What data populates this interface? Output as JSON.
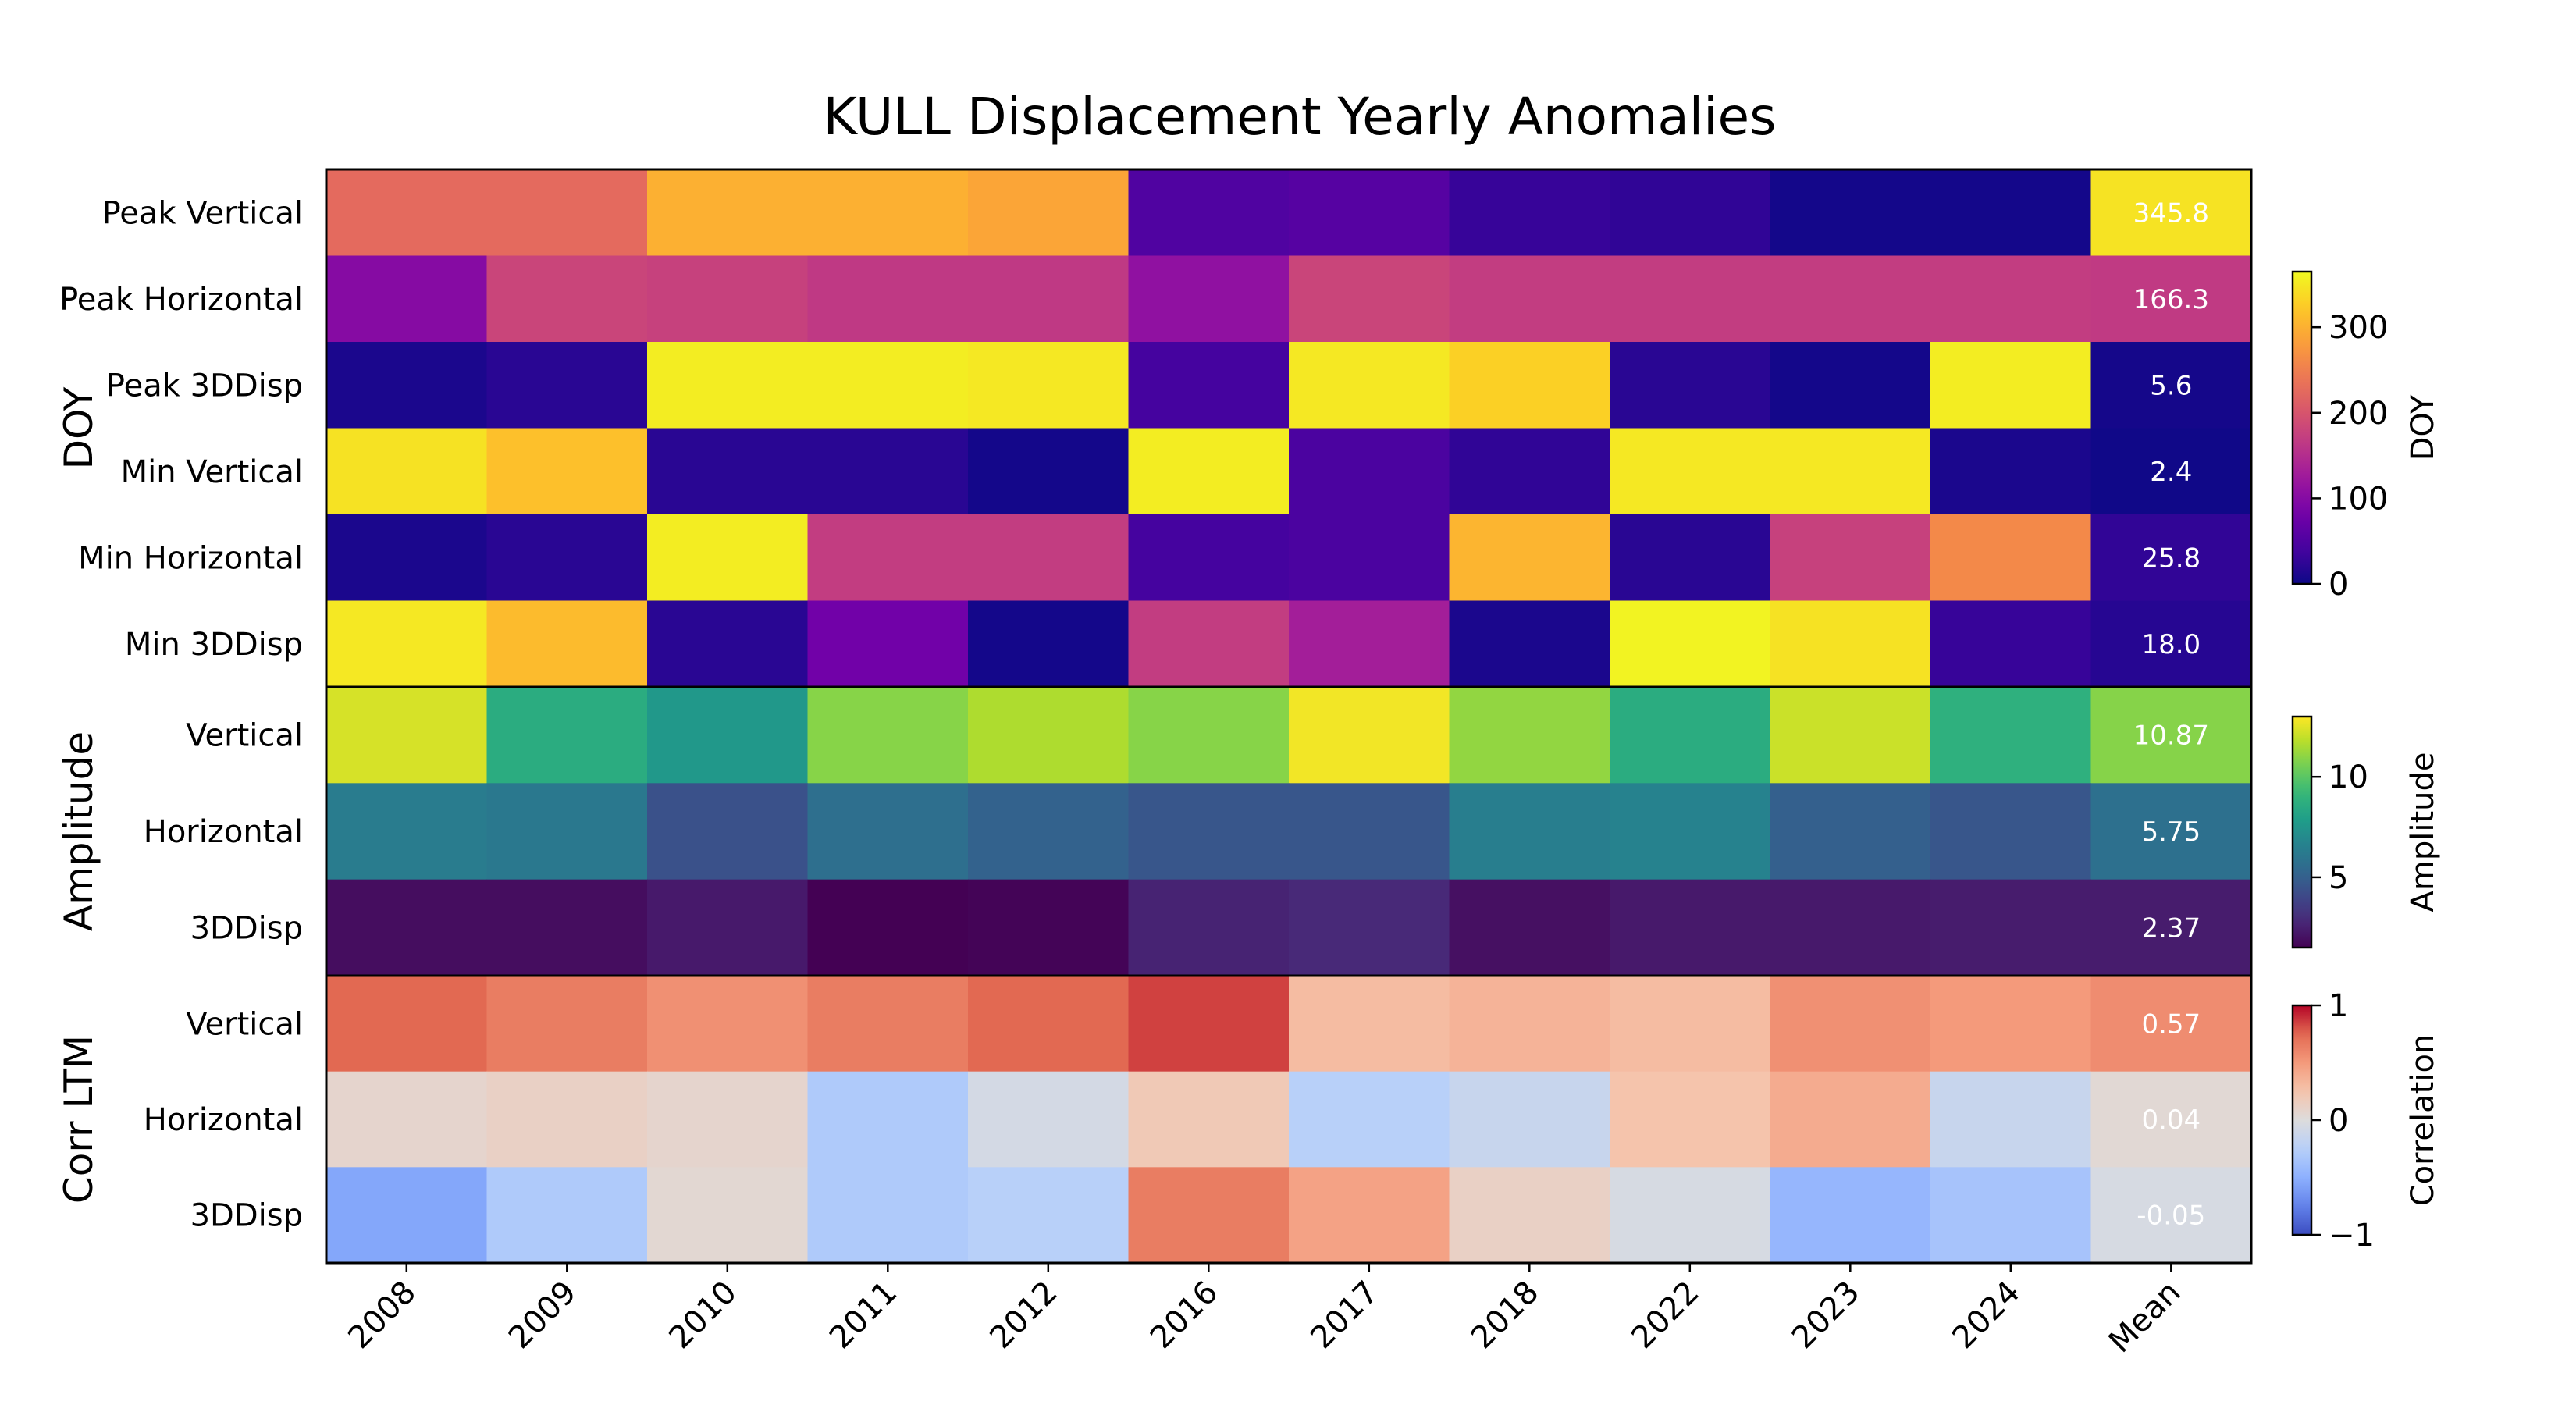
{
  "chart_data": {
    "type": "heatmap",
    "title": "KULL Displacement Yearly Anomalies",
    "columns": [
      "2008",
      "2009",
      "2010",
      "2011",
      "2012",
      "2016",
      "2017",
      "2018",
      "2022",
      "2023",
      "2024",
      "Mean"
    ],
    "panels": [
      {
        "group_label": "DOY",
        "colormap": "plasma",
        "range": [
          0,
          365
        ],
        "colorbar": {
          "label": "DOY",
          "ticks": [
            "0",
            "100",
            "200",
            "300"
          ],
          "tick_values": [
            0,
            100,
            200,
            300
          ]
        },
        "rows": [
          {
            "label": "Peak Vertical",
            "values": [
              225,
              225,
              300,
              300,
              290,
              50,
              55,
              30,
              25,
              5,
              5,
              345.8
            ],
            "mean_label": "345.8"
          },
          {
            "label": "Peak Horizontal",
            "values": [
              100,
              180,
              175,
              165,
              165,
              110,
              180,
              170,
              170,
              170,
              170,
              166.3
            ],
            "mean_label": "166.3"
          },
          {
            "label": "Peak 3DDisp",
            "values": [
              10,
              20,
              355,
              355,
              350,
              40,
              350,
              330,
              20,
              5,
              355,
              5.6
            ],
            "mean_label": "5.6"
          },
          {
            "label": "Min Vertical",
            "values": [
              345,
              315,
              20,
              20,
              5,
              355,
              45,
              25,
              350,
              350,
              10,
              2.4
            ],
            "mean_label": "2.4"
          },
          {
            "label": "Min Horizontal",
            "values": [
              10,
              20,
              355,
              170,
              170,
              40,
              45,
              305,
              20,
              175,
              260,
              25.8
            ],
            "mean_label": "25.8"
          },
          {
            "label": "Min 3DDisp",
            "values": [
              350,
              310,
              20,
              80,
              5,
              170,
              130,
              10,
              360,
              345,
              30,
              18.0
            ],
            "mean_label": "18.0"
          }
        ]
      },
      {
        "group_label": "Amplitude",
        "colormap": "viridis",
        "range": [
          1.5,
          13
        ],
        "colorbar": {
          "label": "Amplitude",
          "ticks": [
            "5",
            "10"
          ],
          "tick_values": [
            5,
            10
          ]
        },
        "rows": [
          {
            "label": "Vertical",
            "values": [
              12.3,
              8.6,
              7.6,
              10.9,
              11.6,
              10.9,
              12.8,
              11.1,
              8.6,
              12.1,
              8.8,
              10.87
            ],
            "mean_label": "10.87"
          },
          {
            "label": "Horizontal",
            "values": [
              6.3,
              6.1,
              4.4,
              5.7,
              5.1,
              4.6,
              4.6,
              6.4,
              6.6,
              5.0,
              4.6,
              5.75
            ],
            "mean_label": "5.75"
          },
          {
            "label": "3DDisp",
            "values": [
              1.9,
              1.9,
              2.3,
              1.5,
              1.6,
              2.6,
              2.8,
              2.0,
              2.3,
              2.3,
              2.4,
              2.37
            ],
            "mean_label": "2.37"
          }
        ]
      },
      {
        "group_label": "Corr LTM",
        "colormap": "coolwarm",
        "range": [
          -1,
          1
        ],
        "colorbar": {
          "label": "Correlation",
          "ticks": [
            "−1",
            "0",
            "1"
          ],
          "tick_values": [
            -1,
            0,
            1
          ]
        },
        "rows": [
          {
            "label": "Vertical",
            "values": [
              0.75,
              0.65,
              0.55,
              0.65,
              0.75,
              0.85,
              0.3,
              0.35,
              0.3,
              0.55,
              0.5,
              0.57
            ],
            "mean_label": "0.57"
          },
          {
            "label": "Horizontal",
            "values": [
              0.08,
              0.12,
              0.08,
              -0.3,
              -0.07,
              0.2,
              -0.25,
              -0.15,
              0.25,
              0.4,
              -0.15,
              0.04
            ],
            "mean_label": "0.04"
          },
          {
            "label": "3DDisp",
            "values": [
              -0.55,
              -0.3,
              0.05,
              -0.3,
              -0.25,
              0.65,
              0.45,
              0.12,
              -0.05,
              -0.45,
              -0.35,
              -0.05
            ],
            "mean_label": "-0.05"
          }
        ]
      }
    ]
  }
}
